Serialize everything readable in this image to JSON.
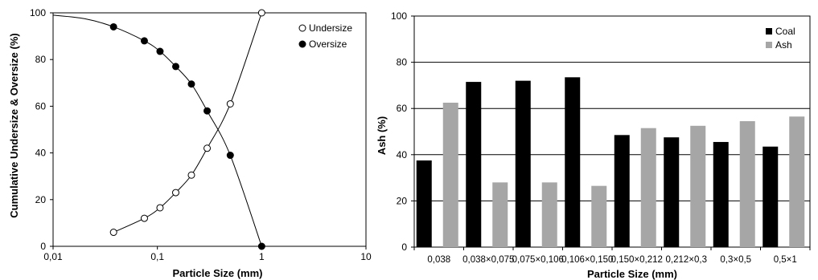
{
  "chart_data": [
    {
      "type": "scatter",
      "xscale": "log",
      "xlim": [
        0.01,
        10
      ],
      "ylim": [
        0,
        100
      ],
      "xticks": [
        "0,01",
        "0,1",
        "1",
        "10"
      ],
      "yticks": [
        "0",
        "20",
        "40",
        "60",
        "80",
        "100"
      ],
      "xlabel": "Particle Size (mm)",
      "ylabel": "Cumulative Undersize & Oversize (%)",
      "legend_position": "top-right",
      "series": [
        {
          "name": "Undersize",
          "marker": "open-circle",
          "x": [
            0.038,
            0.075,
            0.106,
            0.15,
            0.212,
            0.3,
            0.5,
            1.0
          ],
          "y": [
            6,
            12,
            16.5,
            23,
            30.5,
            42,
            61,
            100
          ]
        },
        {
          "name": "Oversize",
          "marker": "filled-circle",
          "x": [
            0.038,
            0.075,
            0.106,
            0.15,
            0.212,
            0.3,
            0.5,
            1.0
          ],
          "y": [
            94,
            88,
            83.5,
            77,
            69.5,
            58,
            39,
            0
          ]
        }
      ],
      "grid": false
    },
    {
      "type": "bar",
      "categories": [
        "0,038",
        "0,038×0,075",
        "0,075×0,106",
        "0,106×0,150",
        "0,150×0,212",
        "0,212×0,3",
        "0,3×0,5",
        "0,5×1"
      ],
      "series": [
        {
          "name": "Coal",
          "color": "#000000",
          "values": [
            37.5,
            71.5,
            72,
            73.5,
            48.5,
            47.5,
            45.5,
            43.5
          ]
        },
        {
          "name": "Ash",
          "color": "#a6a6a6",
          "values": [
            62.5,
            28,
            28,
            26.5,
            51.5,
            52.5,
            54.5,
            56.5
          ]
        }
      ],
      "ylim": [
        0,
        100
      ],
      "yticks": [
        "0",
        "20",
        "40",
        "60",
        "80",
        "100"
      ],
      "xlabel": "Particle Size (mm)",
      "ylabel": "Ash (%)",
      "legend_position": "top-right",
      "grid": true
    }
  ]
}
